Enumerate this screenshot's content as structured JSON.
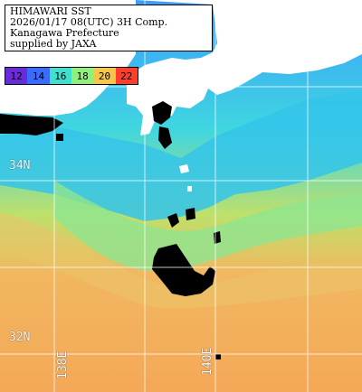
{
  "info": {
    "line1": "HIMAWARI SST",
    "line2": "2026/01/17 08(UTC) 3H Comp.",
    "line3": "Kanagawa Prefecture",
    "line4": "supplied by JAXA"
  },
  "scale": {
    "ticks": [
      "12",
      "14",
      "16",
      "18",
      "20",
      "22"
    ],
    "colors": [
      "#6a2bd8",
      "#1f6fff",
      "#3fe0d0",
      "#7ff07a",
      "#f6c646",
      "#ff3d2a"
    ]
  },
  "grid": {
    "lat_labels": [
      "34N",
      "32N"
    ],
    "lon_labels": [
      "138E",
      "140E"
    ]
  },
  "colors": {
    "land": "#ffffff",
    "cloud": "#000000",
    "cold_water": "#2fa8ff",
    "cool_water": "#45e0d0",
    "mid_water": "#8bf07a",
    "warm_water": "#f3b15a",
    "grid_line": "#ffffff"
  }
}
